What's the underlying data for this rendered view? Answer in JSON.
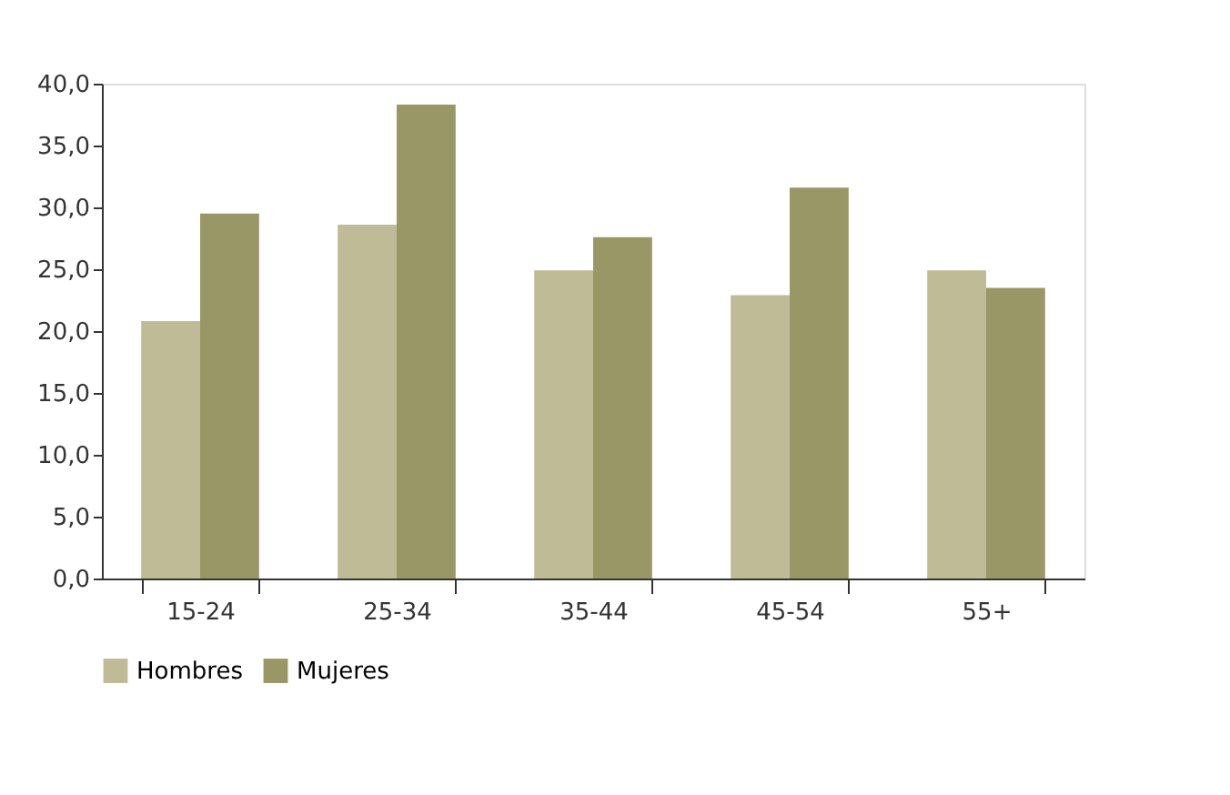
{
  "chart_data": {
    "type": "bar",
    "categories": [
      "15-24",
      "25-34",
      "35-44",
      "45-54",
      "55+"
    ],
    "series": [
      {
        "name": "Hombres",
        "color": "#bfbb97",
        "values": [
          20.8,
          28.6,
          24.9,
          22.9,
          24.9
        ]
      },
      {
        "name": "Mujeres",
        "color": "#9a9766",
        "values": [
          29.5,
          38.3,
          27.6,
          31.6,
          23.5
        ]
      }
    ],
    "ylim": [
      0,
      40
    ],
    "yticks": [
      {
        "value": 0,
        "label": "0,0"
      },
      {
        "value": 5,
        "label": "5,0"
      },
      {
        "value": 10,
        "label": "10,0"
      },
      {
        "value": 15,
        "label": "15,0"
      },
      {
        "value": 20,
        "label": "20,0"
      },
      {
        "value": 25,
        "label": "25,0"
      },
      {
        "value": 30,
        "label": "30,0"
      },
      {
        "value": 35,
        "label": "35,0"
      },
      {
        "value": 40,
        "label": "40,0"
      }
    ],
    "grid": false,
    "legend": "bottom"
  }
}
